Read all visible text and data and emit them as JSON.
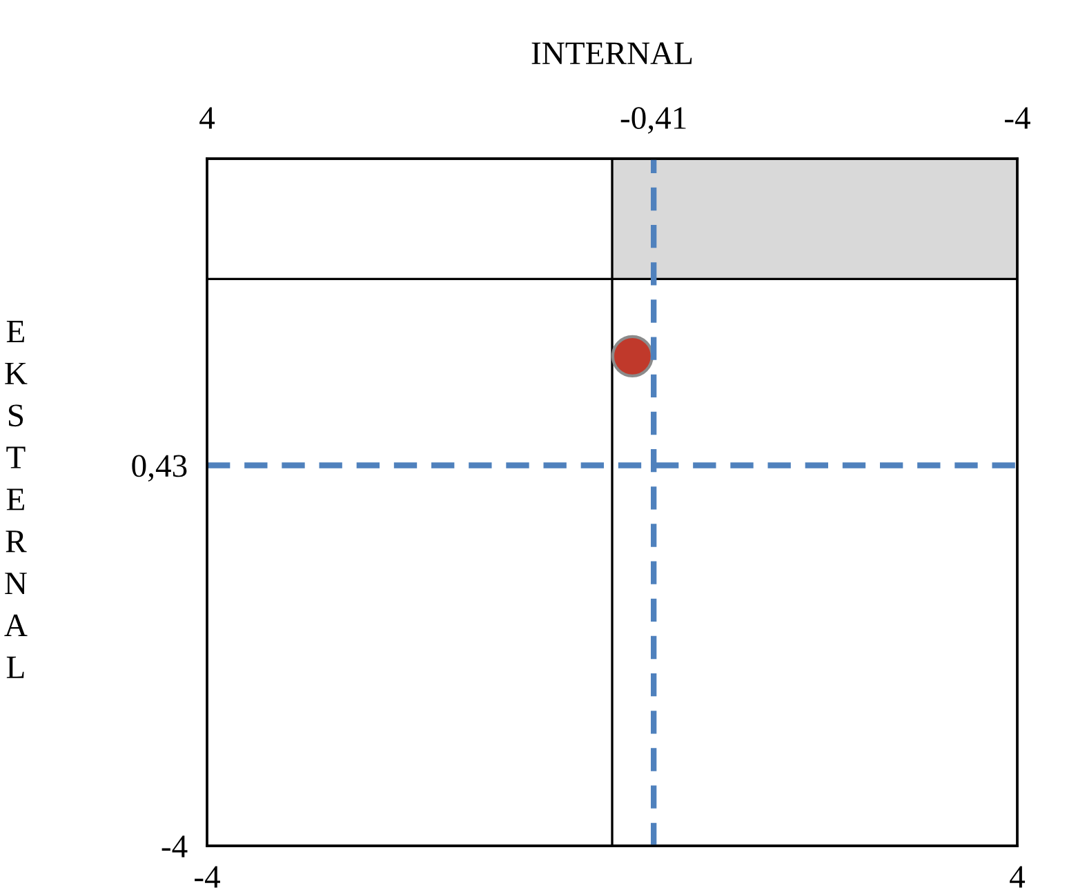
{
  "chart_data": {
    "type": "scatter",
    "x2label": "INTERNAL",
    "ylabel": "EKSTERNAL",
    "xlim": [
      -4,
      4
    ],
    "xticks": [
      {
        "value": -4,
        "label": "-4"
      },
      {
        "value": 4,
        "label": "4"
      }
    ],
    "x2lim": [
      4,
      -4
    ],
    "x2ticks": [
      {
        "value": 4,
        "label": "4"
      },
      {
        "value": -0.41,
        "label": "-0,41"
      },
      {
        "value": -4,
        "label": "-4"
      }
    ],
    "ylim": [
      -4,
      4
    ],
    "yticks": [
      {
        "value": -4,
        "label": "-4"
      },
      {
        "value": 0.43,
        "label": "0,43"
      }
    ],
    "x": [
      0.2
    ],
    "values": [
      1.7
    ],
    "color": "#c0392b",
    "marker": "circle",
    "ref_lines": [
      {
        "axis": "x",
        "value": 0,
        "color": "#000000",
        "line_style": "solid"
      },
      {
        "axis": "y",
        "value": 2.6,
        "color": "#000000",
        "line_style": "solid"
      },
      {
        "axis": "x2",
        "value": -0.41,
        "color": "#4f81bd",
        "line_style": "dashed"
      },
      {
        "axis": "y",
        "value": 0.43,
        "color": "#4f81bd",
        "line_style": "dashed"
      }
    ],
    "bands": [
      {
        "axis": "y",
        "from": 2.6,
        "to": 4,
        "color": "#d9d9d9"
      }
    ],
    "grid": false
  }
}
